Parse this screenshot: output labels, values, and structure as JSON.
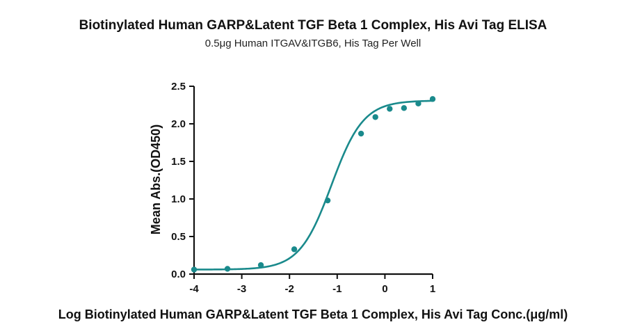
{
  "chart_data": {
    "type": "scatter",
    "title": "Biotinylated Human GARP&Latent TGF Beta 1 Complex, His Avi Tag ELISA",
    "subtitle": "0.5μg Human ITGAV&ITGB6, His Tag Per Well",
    "xlabel": "Log Biotinylated Human GARP&Latent TGF Beta 1 Complex, His Avi Tag Conc.(μg/ml)",
    "ylabel": "Mean Abs.(OD450)",
    "xlim": [
      -4,
      1
    ],
    "ylim": [
      0,
      2.5
    ],
    "xticks": [
      -4,
      -3,
      -2,
      -1,
      0,
      1
    ],
    "xtick_labels": [
      "-4",
      "-3",
      "-2",
      "-1",
      "0",
      "1"
    ],
    "yticks": [
      0,
      0.5,
      1,
      1.5,
      2,
      2.5
    ],
    "ytick_labels": [
      "0.0",
      "0.5",
      "1.0",
      "1.5",
      "2.0",
      "2.5"
    ],
    "grid": false,
    "legend": "none",
    "series": [
      {
        "x": [
          -4,
          -3.3,
          -2.6,
          -1.9,
          -1.2,
          -0.5,
          -0.2,
          0.1,
          0.4,
          0.7,
          1.0
        ],
        "y": [
          0.06,
          0.07,
          0.12,
          0.33,
          0.98,
          1.87,
          2.09,
          2.2,
          2.21,
          2.27,
          2.33
        ],
        "fit": "four-parameter logistic",
        "color": "#1a8a8c"
      }
    ],
    "fit_params": {
      "bottom": 0.06,
      "top": 2.31,
      "log_ec50": -1.12,
      "hill_slope": 1.3
    }
  }
}
